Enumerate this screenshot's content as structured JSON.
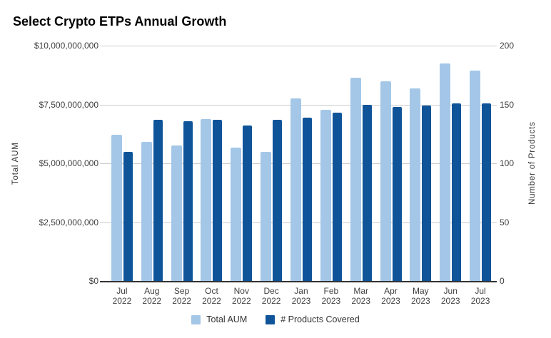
{
  "title": "Select Crypto ETPs Annual Growth",
  "colors": {
    "aum": "#a4c7e8",
    "products": "#0f5499",
    "gridline": "#cccccc",
    "axis_line": "#333333"
  },
  "left_axis": {
    "title": "Total AUM",
    "ticks": [
      "$10,000,000,000",
      "$7,500,000,000",
      "$5,000,000,000",
      "$2,500,000,000",
      "$0"
    ]
  },
  "right_axis": {
    "title": "Number of Products",
    "ticks": [
      "200",
      "150",
      "100",
      "50",
      "0"
    ]
  },
  "legend": {
    "items": [
      {
        "label": "Total AUM",
        "color": "#a4c7e8"
      },
      {
        "label": "# Products Covered",
        "color": "#0f5499"
      }
    ]
  },
  "chart_data": {
    "type": "bar",
    "title": "Select Crypto ETPs Annual Growth",
    "categories": [
      "Jul 2022",
      "Aug 2022",
      "Sep 2022",
      "Oct 2022",
      "Nov 2022",
      "Dec 2022",
      "Jan 2023",
      "Feb 2023",
      "Mar 2023",
      "Apr 2023",
      "May 2023",
      "Jun 2023",
      "Jul 2023"
    ],
    "series": [
      {
        "name": "Total AUM",
        "axis": "left",
        "color": "#a4c7e8",
        "values": [
          6200000000,
          5900000000,
          5750000000,
          6870000000,
          5680000000,
          5490000000,
          7770000000,
          7280000000,
          8650000000,
          8480000000,
          8180000000,
          9250000000,
          8930000000
        ]
      },
      {
        "name": "# Products Covered",
        "axis": "right",
        "color": "#0f5499",
        "values": [
          110,
          137,
          136,
          137,
          132,
          137,
          139,
          143,
          150,
          148,
          149,
          151,
          151
        ]
      }
    ],
    "ylabel_left": "Total AUM",
    "ylabel_right": "Number of Products",
    "ylim_left": [
      0,
      10000000000
    ],
    "ylim_right": [
      0,
      200
    ],
    "grid": true,
    "legend_position": "bottom"
  }
}
